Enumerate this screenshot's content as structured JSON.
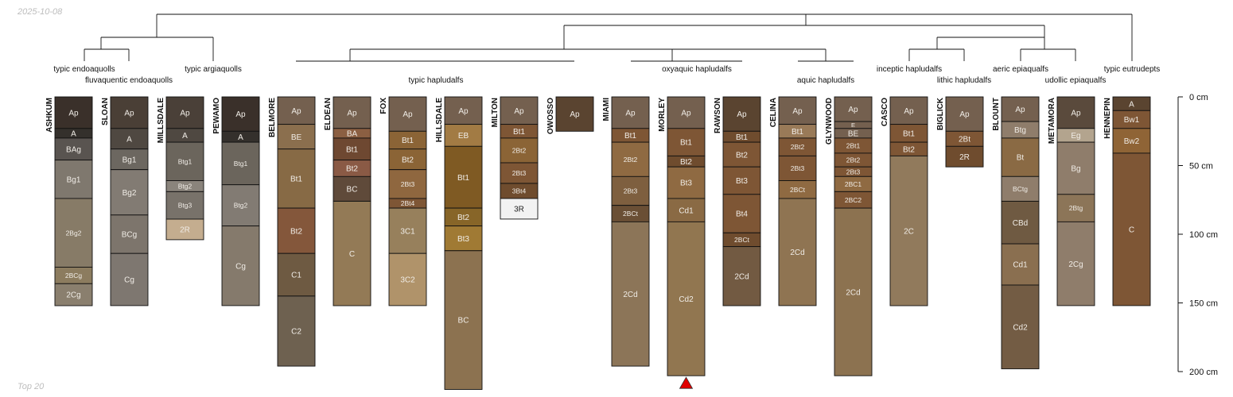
{
  "date_label": "2025-10-08",
  "footer_label": "Top 20",
  "depth_axis": {
    "max_cm": 200,
    "ticks": [
      {
        "value": 0,
        "label": "0 cm"
      },
      {
        "value": 50,
        "label": "50 cm"
      },
      {
        "value": 100,
        "label": "100 cm"
      },
      {
        "value": 150,
        "label": "150 cm"
      },
      {
        "value": 200,
        "label": "200 cm"
      }
    ]
  },
  "marker_profile": "MORLEY",
  "taxa": [
    "typic endoaquolls",
    "fluvaquentic endoaquolls",
    "typic argiaquolls",
    "typic hapludalfs",
    "oxyaquic hapludalfs",
    "aquic hapludalfs",
    "inceptic hapludalfs",
    "lithic hapludalfs",
    "aeric epiaqualfs",
    "udollic epiaqualfs",
    "typic eutrudepts"
  ],
  "profiles": [
    {
      "name": "ASHKUM",
      "horizons": [
        {
          "name": "Ap",
          "top": 0,
          "bottom": 23,
          "color": "#3a302a"
        },
        {
          "name": "A",
          "top": 23,
          "bottom": 30,
          "color": "#34302c"
        },
        {
          "name": "BAg",
          "top": 30,
          "bottom": 46,
          "color": "#595450"
        },
        {
          "name": "Bg1",
          "top": 46,
          "bottom": 74,
          "color": "#7f786e"
        },
        {
          "name": "2Bg2",
          "top": 74,
          "bottom": 124,
          "color": "#877b67"
        },
        {
          "name": "2BCg",
          "top": 124,
          "bottom": 136,
          "color": "#8c7c5f"
        },
        {
          "name": "2Cg",
          "top": 136,
          "bottom": 152,
          "color": "#8a7f6e"
        }
      ]
    },
    {
      "name": "SLOAN",
      "horizons": [
        {
          "name": "Ap",
          "top": 0,
          "bottom": 23,
          "color": "#4a3f36"
        },
        {
          "name": "A",
          "top": 23,
          "bottom": 38,
          "color": "#4f4841"
        },
        {
          "name": "Bg1",
          "top": 38,
          "bottom": 53,
          "color": "#6c6760"
        },
        {
          "name": "Bg2",
          "top": 53,
          "bottom": 86,
          "color": "#827b73"
        },
        {
          "name": "BCg",
          "top": 86,
          "bottom": 114,
          "color": "#7d756c"
        },
        {
          "name": "Cg",
          "top": 114,
          "bottom": 152,
          "color": "#7e7770"
        }
      ]
    },
    {
      "name": "MILLSDALE",
      "horizons": [
        {
          "name": "Ap",
          "top": 0,
          "bottom": 23,
          "color": "#4a4038"
        },
        {
          "name": "A",
          "top": 23,
          "bottom": 33,
          "color": "#4f4841"
        },
        {
          "name": "Btg1",
          "top": 33,
          "bottom": 61,
          "color": "#6b655c"
        },
        {
          "name": "Btg2",
          "top": 61,
          "bottom": 69,
          "color": "#8a847c"
        },
        {
          "name": "Btg3",
          "top": 69,
          "bottom": 89,
          "color": "#78726a"
        },
        {
          "name": "2R",
          "top": 89,
          "bottom": 104,
          "color": "#c4ad8f"
        }
      ]
    },
    {
      "name": "PEWAMO",
      "horizons": [
        {
          "name": "Ap",
          "top": 0,
          "bottom": 25,
          "color": "#3a302a"
        },
        {
          "name": "A",
          "top": 25,
          "bottom": 33,
          "color": "#34302c"
        },
        {
          "name": "Btg1",
          "top": 33,
          "bottom": 64,
          "color": "#6b655c"
        },
        {
          "name": "Btg2",
          "top": 64,
          "bottom": 94,
          "color": "#827b73"
        },
        {
          "name": "Cg",
          "top": 94,
          "bottom": 152,
          "color": "#857a6c"
        }
      ]
    },
    {
      "name": "BELMORE",
      "horizons": [
        {
          "name": "Ap",
          "top": 0,
          "bottom": 20,
          "color": "#74604f"
        },
        {
          "name": "BE",
          "top": 20,
          "bottom": 38,
          "color": "#8b6f4e"
        },
        {
          "name": "Bt1",
          "top": 38,
          "bottom": 81,
          "color": "#876a45"
        },
        {
          "name": "Bt2",
          "top": 81,
          "bottom": 114,
          "color": "#84573b"
        },
        {
          "name": "C1",
          "top": 114,
          "bottom": 145,
          "color": "#6e5a42"
        },
        {
          "name": "C2",
          "top": 145,
          "bottom": 196,
          "color": "#6e6150"
        }
      ]
    },
    {
      "name": "ELDEAN",
      "horizons": [
        {
          "name": "Ap",
          "top": 0,
          "bottom": 23,
          "color": "#74604f"
        },
        {
          "name": "BA",
          "top": 23,
          "bottom": 30,
          "color": "#8b5f42"
        },
        {
          "name": "Bt1",
          "top": 30,
          "bottom": 46,
          "color": "#6e4831"
        },
        {
          "name": "Bt2",
          "top": 46,
          "bottom": 58,
          "color": "#8a5a45"
        },
        {
          "name": "BC",
          "top": 58,
          "bottom": 76,
          "color": "#5f4a3a"
        },
        {
          "name": "C",
          "top": 76,
          "bottom": 152,
          "color": "#937a56"
        }
      ]
    },
    {
      "name": "FOX",
      "horizons": [
        {
          "name": "Ap",
          "top": 0,
          "bottom": 25,
          "color": "#74604f"
        },
        {
          "name": "Bt1",
          "top": 25,
          "bottom": 38,
          "color": "#8b6436"
        },
        {
          "name": "Bt2",
          "top": 38,
          "bottom": 53,
          "color": "#8b6436"
        },
        {
          "name": "2Bt3",
          "top": 53,
          "bottom": 74,
          "color": "#8f673f"
        },
        {
          "name": "2Bt4",
          "top": 74,
          "bottom": 81,
          "color": "#7e5635"
        },
        {
          "name": "3C1",
          "top": 81,
          "bottom": 114,
          "color": "#97805c"
        },
        {
          "name": "3C2",
          "top": 114,
          "bottom": 152,
          "color": "#b0936a"
        }
      ]
    },
    {
      "name": "HILLSDALE",
      "horizons": [
        {
          "name": "Ap",
          "top": 0,
          "bottom": 20,
          "color": "#74604f"
        },
        {
          "name": "EB",
          "top": 20,
          "bottom": 36,
          "color": "#a27b44"
        },
        {
          "name": "Bt1",
          "top": 36,
          "bottom": 81,
          "color": "#7f5a23"
        },
        {
          "name": "Bt2",
          "top": 81,
          "bottom": 94,
          "color": "#876528"
        },
        {
          "name": "Bt3",
          "top": 94,
          "bottom": 112,
          "color": "#a07a34"
        },
        {
          "name": "BC",
          "top": 112,
          "bottom": 213,
          "color": "#8c7250"
        }
      ]
    },
    {
      "name": "MILTON",
      "horizons": [
        {
          "name": "Ap",
          "top": 0,
          "bottom": 20,
          "color": "#74604f"
        },
        {
          "name": "Bt1",
          "top": 20,
          "bottom": 30,
          "color": "#7e5635"
        },
        {
          "name": "2Bt2",
          "top": 30,
          "bottom": 48,
          "color": "#8b6436"
        },
        {
          "name": "2Bt3",
          "top": 48,
          "bottom": 63,
          "color": "#7e5635"
        },
        {
          "name": "3Bt4",
          "top": 63,
          "bottom": 74,
          "color": "#6f4c2e"
        },
        {
          "name": "3R",
          "top": 74,
          "bottom": 89,
          "color": "#f2f2f2"
        }
      ]
    },
    {
      "name": "OWOSSO",
      "horizons": [
        {
          "name": "Ap",
          "top": 0,
          "bottom": 25,
          "color": "#5a4430"
        }
      ]
    },
    {
      "name": "MIAMI",
      "horizons": [
        {
          "name": "Ap",
          "top": 0,
          "bottom": 23,
          "color": "#74604f"
        },
        {
          "name": "Bt1",
          "top": 23,
          "bottom": 33,
          "color": "#7e5635"
        },
        {
          "name": "2Bt2",
          "top": 33,
          "bottom": 58,
          "color": "#8f6a42"
        },
        {
          "name": "2Bt3",
          "top": 58,
          "bottom": 79,
          "color": "#7e5f3f"
        },
        {
          "name": "2BCt",
          "top": 79,
          "bottom": 91,
          "color": "#6a4f35"
        },
        {
          "name": "2Cd",
          "top": 91,
          "bottom": 196,
          "color": "#8c7558"
        }
      ]
    },
    {
      "name": "MORLEY",
      "horizons": [
        {
          "name": "Ap",
          "top": 0,
          "bottom": 23,
          "color": "#74604f"
        },
        {
          "name": "Bt1",
          "top": 23,
          "bottom": 43,
          "color": "#7e5635"
        },
        {
          "name": "Bt2",
          "top": 43,
          "bottom": 51,
          "color": "#6f4c2e"
        },
        {
          "name": "Bt3",
          "top": 51,
          "bottom": 74,
          "color": "#8f6a42"
        },
        {
          "name": "Cd1",
          "top": 74,
          "bottom": 91,
          "color": "#8a6a44"
        },
        {
          "name": "Cd2",
          "top": 91,
          "bottom": 203,
          "color": "#917650"
        }
      ]
    },
    {
      "name": "RAWSON",
      "horizons": [
        {
          "name": "Ap",
          "top": 0,
          "bottom": 25,
          "color": "#5a4430"
        },
        {
          "name": "Bt1",
          "top": 25,
          "bottom": 33,
          "color": "#6f4c2e"
        },
        {
          "name": "Bt2",
          "top": 33,
          "bottom": 51,
          "color": "#7e5635"
        },
        {
          "name": "Bt3",
          "top": 51,
          "bottom": 71,
          "color": "#7e5635"
        },
        {
          "name": "Bt4",
          "top": 71,
          "bottom": 99,
          "color": "#7e5635"
        },
        {
          "name": "2BCt",
          "top": 99,
          "bottom": 109,
          "color": "#6f4c2e"
        },
        {
          "name": "2Cd",
          "top": 109,
          "bottom": 152,
          "color": "#725a42"
        }
      ]
    },
    {
      "name": "CELINA",
      "horizons": [
        {
          "name": "Ap",
          "top": 0,
          "bottom": 20,
          "color": "#74604f"
        },
        {
          "name": "Bt1",
          "top": 20,
          "bottom": 30,
          "color": "#997a58"
        },
        {
          "name": "2Bt2",
          "top": 30,
          "bottom": 43,
          "color": "#7e5635"
        },
        {
          "name": "2Bt3",
          "top": 43,
          "bottom": 61,
          "color": "#7e5635"
        },
        {
          "name": "2BCt",
          "top": 61,
          "bottom": 74,
          "color": "#8f6a42"
        },
        {
          "name": "2Cd",
          "top": 74,
          "bottom": 152,
          "color": "#8f7452"
        }
      ]
    },
    {
      "name": "GLYNWOOD",
      "horizons": [
        {
          "name": "Ap",
          "top": 0,
          "bottom": 18,
          "color": "#74604f"
        },
        {
          "name": "E",
          "top": 18,
          "bottom": 23,
          "color": "#74604f"
        },
        {
          "name": "BE",
          "top": 23,
          "bottom": 30,
          "color": "#74604f"
        },
        {
          "name": "2Bt1",
          "top": 30,
          "bottom": 41,
          "color": "#7e5635"
        },
        {
          "name": "2Bt2",
          "top": 41,
          "bottom": 51,
          "color": "#7e5635"
        },
        {
          "name": "2Bt3",
          "top": 51,
          "bottom": 58,
          "color": "#7e5635"
        },
        {
          "name": "2BC1",
          "top": 58,
          "bottom": 69,
          "color": "#8f6a42"
        },
        {
          "name": "2BC2",
          "top": 69,
          "bottom": 81,
          "color": "#7e5635"
        },
        {
          "name": "2Cd",
          "top": 81,
          "bottom": 203,
          "color": "#8c7250"
        }
      ]
    },
    {
      "name": "CASCO",
      "horizons": [
        {
          "name": "Ap",
          "top": 0,
          "bottom": 20,
          "color": "#74604f"
        },
        {
          "name": "Bt1",
          "top": 20,
          "bottom": 33,
          "color": "#7e5635"
        },
        {
          "name": "Bt2",
          "top": 33,
          "bottom": 43,
          "color": "#7e5635"
        },
        {
          "name": "2C",
          "top": 43,
          "bottom": 152,
          "color": "#917a5c"
        }
      ]
    },
    {
      "name": "BIGLICK",
      "horizons": [
        {
          "name": "Ap",
          "top": 0,
          "bottom": 25,
          "color": "#74604f"
        },
        {
          "name": "2Bt",
          "top": 25,
          "bottom": 36,
          "color": "#7e5635"
        },
        {
          "name": "2R",
          "top": 36,
          "bottom": 51,
          "color": "#6f4c2e"
        }
      ]
    },
    {
      "name": "BLOUNT",
      "horizons": [
        {
          "name": "Ap",
          "top": 0,
          "bottom": 18,
          "color": "#74604f"
        },
        {
          "name": "Btg",
          "top": 18,
          "bottom": 30,
          "color": "#8f7d6b"
        },
        {
          "name": "Bt",
          "top": 30,
          "bottom": 58,
          "color": "#8a6a44"
        },
        {
          "name": "BCtg",
          "top": 58,
          "bottom": 76,
          "color": "#8f7d6b"
        },
        {
          "name": "CBd",
          "top": 76,
          "bottom": 107,
          "color": "#6f5a42"
        },
        {
          "name": "Cd1",
          "top": 107,
          "bottom": 137,
          "color": "#8a6f50"
        },
        {
          "name": "Cd2",
          "top": 137,
          "bottom": 198,
          "color": "#735c44"
        }
      ]
    },
    {
      "name": "METAMORA",
      "horizons": [
        {
          "name": "Ap",
          "top": 0,
          "bottom": 23,
          "color": "#5a4a3c"
        },
        {
          "name": "Eg",
          "top": 23,
          "bottom": 33,
          "color": "#b3a48e"
        },
        {
          "name": "Bg",
          "top": 33,
          "bottom": 71,
          "color": "#8f7d6b"
        },
        {
          "name": "2Btg",
          "top": 71,
          "bottom": 91,
          "color": "#8c7558"
        },
        {
          "name": "2Cg",
          "top": 91,
          "bottom": 152,
          "color": "#8f7d6b"
        }
      ]
    },
    {
      "name": "HENNEPIN",
      "horizons": [
        {
          "name": "A",
          "top": 0,
          "bottom": 10,
          "color": "#5a4430"
        },
        {
          "name": "Bw1",
          "top": 10,
          "bottom": 23,
          "color": "#7e5635"
        },
        {
          "name": "Bw2",
          "top": 23,
          "bottom": 41,
          "color": "#8f6436"
        },
        {
          "name": "C",
          "top": 41,
          "bottom": 152,
          "color": "#7e5635"
        }
      ]
    }
  ]
}
